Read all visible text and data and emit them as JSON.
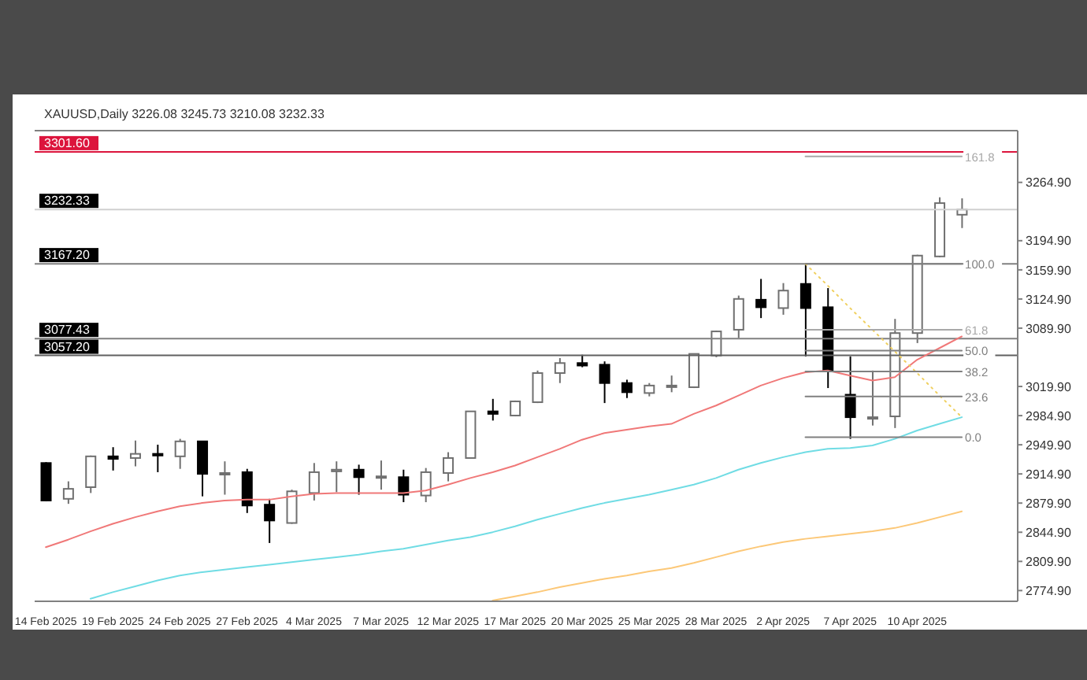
{
  "chart_data": {
    "type": "candlestick",
    "title": "XAUUSD,Daily 3226.08 3245.73 3210.08 3232.33",
    "categories": [
      "14 Feb 2025",
      null,
      null,
      "19 Feb 2025",
      null,
      null,
      "24 Feb 2025",
      null,
      null,
      "27 Feb 2025",
      null,
      null,
      "4 Mar 2025",
      null,
      null,
      "7 Mar 2025",
      null,
      null,
      "12 Mar 2025",
      null,
      null,
      "17 Mar 2025",
      null,
      null,
      "20 Mar 2025",
      null,
      null,
      "25 Mar 2025",
      null,
      null,
      "28 Mar 2025",
      null,
      null,
      "2 Apr 2025",
      null,
      null,
      "7 Apr 2025",
      null,
      null,
      "10 Apr 2025",
      null,
      null
    ],
    "ohlc": [
      [
        2928,
        2929,
        2882,
        2883
      ],
      [
        2885,
        2906,
        2879,
        2897
      ],
      [
        2899,
        2937,
        2892,
        2936
      ],
      [
        2936,
        2947,
        2919,
        2933
      ],
      [
        2934,
        2955,
        2924,
        2939
      ],
      [
        2939,
        2950,
        2917,
        2937
      ],
      [
        2936,
        2957,
        2921,
        2954
      ],
      [
        2954,
        2954,
        2888,
        2915
      ],
      [
        2915,
        2930,
        2890,
        2916
      ],
      [
        2917,
        2921,
        2868,
        2877
      ],
      [
        2878,
        2885,
        2832,
        2859
      ],
      [
        2856,
        2896,
        2855,
        2894
      ],
      [
        2892,
        2928,
        2883,
        2917
      ],
      [
        2918,
        2930,
        2893,
        2920
      ],
      [
        2920,
        2926,
        2890,
        2911
      ],
      [
        2912,
        2931,
        2896,
        2912
      ],
      [
        2911,
        2920,
        2881,
        2890
      ],
      [
        2889,
        2922,
        2881,
        2917
      ],
      [
        2916,
        2941,
        2906,
        2934
      ],
      [
        2934,
        2990,
        2934,
        2990
      ],
      [
        2990,
        3005,
        2979,
        2987
      ],
      [
        2985,
        3003,
        2984,
        3002
      ],
      [
        3001,
        3039,
        3000,
        3036
      ],
      [
        3036,
        3054,
        3024,
        3048
      ],
      [
        3048,
        3058,
        3043,
        3045
      ],
      [
        3046,
        3050,
        3000,
        3024
      ],
      [
        3024,
        3028,
        3006,
        3013
      ],
      [
        3012,
        3024,
        3008,
        3021
      ],
      [
        3020,
        3033,
        3013,
        3021
      ],
      [
        3019,
        3059,
        3018,
        3059
      ],
      [
        3057,
        3087,
        3055,
        3086
      ],
      [
        3088,
        3129,
        3078,
        3125
      ],
      [
        3124,
        3149,
        3102,
        3115
      ],
      [
        3114,
        3144,
        3106,
        3135
      ],
      [
        3143,
        3167,
        3056,
        3114
      ],
      [
        3115,
        3138,
        3018,
        3039
      ],
      [
        3010,
        3056,
        2957,
        2983
      ],
      [
        2983,
        3039,
        2973,
        2983
      ],
      [
        2984,
        3101,
        2970,
        3084
      ],
      [
        3084,
        3178,
        3072,
        3177
      ],
      [
        3176,
        3247,
        3175,
        3240
      ],
      [
        3226.08,
        3245.73,
        3210.08,
        3232.33
      ]
    ],
    "series": [
      {
        "type": "line",
        "color": "#f07878",
        "values": [
          2827,
          2836,
          2846,
          2855,
          2863,
          2870,
          2876,
          2880,
          2883,
          2884,
          2884,
          2888,
          2891,
          2892,
          2892,
          2892,
          2892,
          2895,
          2902,
          2910,
          2917,
          2925,
          2935,
          2945,
          2956,
          2964,
          2968,
          2972,
          2975,
          2987,
          2997,
          3009,
          3021,
          3030,
          3037,
          3039,
          3033,
          3027,
          3031,
          3052,
          3066,
          3080
        ]
      },
      {
        "type": "line",
        "color": "#70dce4",
        "values": [
          null,
          null,
          2765,
          2773,
          2780,
          2787,
          2793,
          2797,
          2800,
          2803,
          2806,
          2809,
          2812,
          2815,
          2818,
          2822,
          2825,
          2830,
          2835,
          2839,
          2845,
          2852,
          2860,
          2867,
          2874,
          2880,
          2885,
          2890,
          2896,
          2902,
          2910,
          2920,
          2928,
          2935,
          2941,
          2945,
          2946,
          2949,
          2957,
          2967,
          2975,
          2983
        ]
      },
      {
        "type": "line",
        "color": "#fcc878",
        "values": [
          null,
          null,
          null,
          null,
          null,
          null,
          null,
          null,
          null,
          null,
          null,
          null,
          null,
          null,
          null,
          null,
          null,
          null,
          null,
          null,
          2763,
          2768,
          2773,
          2779,
          2784,
          2789,
          2793,
          2798,
          2802,
          2808,
          2815,
          2822,
          2828,
          2833,
          2837,
          2840,
          2843,
          2846,
          2850,
          2856,
          2863,
          2870
        ]
      },
      {
        "type": "line",
        "color": "#f0d060",
        "line_style": "dotted",
        "values": [
          null,
          null,
          null,
          null,
          null,
          null,
          null,
          null,
          null,
          null,
          null,
          null,
          null,
          null,
          null,
          null,
          null,
          null,
          null,
          null,
          null,
          null,
          null,
          null,
          null,
          null,
          null,
          null,
          null,
          null,
          null,
          null,
          null,
          null,
          3167,
          3141,
          3114,
          3088,
          3062,
          3036,
          3009,
          2983
        ]
      },
      {
        "type": "line",
        "name": "161.8",
        "color": "#a8a8a8",
        "values": [
          null,
          null,
          null,
          null,
          null,
          null,
          null,
          null,
          null,
          null,
          null,
          null,
          null,
          null,
          null,
          null,
          null,
          null,
          null,
          null,
          null,
          null,
          null,
          null,
          null,
          null,
          null,
          null,
          null,
          null,
          null,
          null,
          null,
          null,
          3296,
          3296,
          3296,
          3296,
          3296,
          3296,
          3296,
          3296
        ]
      },
      {
        "type": "line",
        "name": "100.0",
        "color": "#808080",
        "values": [
          null,
          null,
          null,
          null,
          null,
          null,
          null,
          null,
          null,
          null,
          null,
          null,
          null,
          null,
          null,
          null,
          null,
          null,
          null,
          null,
          null,
          null,
          null,
          null,
          null,
          null,
          null,
          null,
          null,
          null,
          null,
          null,
          null,
          null,
          3167,
          3167,
          3167,
          3167,
          3167,
          3167,
          3167,
          3167
        ]
      },
      {
        "type": "line",
        "name": "61.8",
        "color": "#a8a8a8",
        "values": [
          null,
          null,
          null,
          null,
          null,
          null,
          null,
          null,
          null,
          null,
          null,
          null,
          null,
          null,
          null,
          null,
          null,
          null,
          null,
          null,
          null,
          null,
          null,
          null,
          null,
          null,
          null,
          null,
          null,
          null,
          null,
          null,
          null,
          null,
          3088,
          3088,
          3088,
          3088,
          3088,
          3088,
          3088,
          3088
        ]
      },
      {
        "type": "line",
        "name": "50.0",
        "color": "#808080",
        "values": [
          null,
          null,
          null,
          null,
          null,
          null,
          null,
          null,
          null,
          null,
          null,
          null,
          null,
          null,
          null,
          null,
          null,
          null,
          null,
          null,
          null,
          null,
          null,
          null,
          null,
          null,
          null,
          null,
          null,
          null,
          null,
          null,
          null,
          null,
          3063,
          3063,
          3063,
          3063,
          3063,
          3063,
          3063,
          3063
        ]
      },
      {
        "type": "line",
        "name": "38.2",
        "color": "#808080",
        "values": [
          null,
          null,
          null,
          null,
          null,
          null,
          null,
          null,
          null,
          null,
          null,
          null,
          null,
          null,
          null,
          null,
          null,
          null,
          null,
          null,
          null,
          null,
          null,
          null,
          null,
          null,
          null,
          null,
          null,
          null,
          null,
          null,
          null,
          null,
          3038,
          3038,
          3038,
          3038,
          3038,
          3038,
          3038,
          3038
        ]
      },
      {
        "type": "line",
        "name": "23.6",
        "color": "#808080",
        "values": [
          null,
          null,
          null,
          null,
          null,
          null,
          null,
          null,
          null,
          null,
          null,
          null,
          null,
          null,
          null,
          null,
          null,
          null,
          null,
          null,
          null,
          null,
          null,
          null,
          null,
          null,
          null,
          null,
          null,
          null,
          null,
          null,
          null,
          null,
          3008,
          3008,
          3008,
          3008,
          3008,
          3008,
          3008,
          3008
        ]
      },
      {
        "type": "line",
        "name": "0.0",
        "color": "#808080",
        "values": [
          null,
          null,
          null,
          null,
          null,
          null,
          null,
          null,
          null,
          null,
          null,
          null,
          null,
          null,
          null,
          null,
          null,
          null,
          null,
          null,
          null,
          null,
          null,
          null,
          null,
          null,
          null,
          null,
          null,
          null,
          null,
          null,
          null,
          null,
          2959,
          2959,
          2959,
          2959,
          2959,
          2959,
          2959,
          2959
        ]
      }
    ],
    "ylim": [
      2762,
      3327
    ],
    "yticks": [
      {
        "value": 2774.9,
        "label": "2774.90"
      },
      {
        "value": 2809.9,
        "label": "2809.90"
      },
      {
        "value": 2844.9,
        "label": "2844.90"
      },
      {
        "value": 2879.9,
        "label": "2879.90"
      },
      {
        "value": 2914.9,
        "label": "2914.90"
      },
      {
        "value": 2949.9,
        "label": "2949.90"
      },
      {
        "value": 2984.9,
        "label": "2984.90"
      },
      {
        "value": 3019.9,
        "label": "3019.90"
      },
      {
        "value": 3089.9,
        "label": "3089.90"
      },
      {
        "value": 3124.9,
        "label": "3124.90"
      },
      {
        "value": 3159.9,
        "label": "3159.90"
      },
      {
        "value": 3194.9,
        "label": "3194.90"
      },
      {
        "value": 3264.9,
        "label": "3264.90"
      }
    ],
    "ref_lines": [
      {
        "axis": "y",
        "value": 3301.6,
        "label": "3301.60",
        "color": "#dc143c"
      },
      {
        "axis": "y",
        "value": 3232.33,
        "label": "3232.33",
        "color": "#d0d0d0"
      },
      {
        "axis": "y",
        "value": 3167.2,
        "label": "3167.20",
        "color": "#808080"
      },
      {
        "axis": "y",
        "value": 3077.43,
        "label": "3077.43",
        "color": "#808080"
      },
      {
        "axis": "y",
        "value": 3057.2,
        "label": "3057.20",
        "color": "#606060"
      }
    ]
  }
}
